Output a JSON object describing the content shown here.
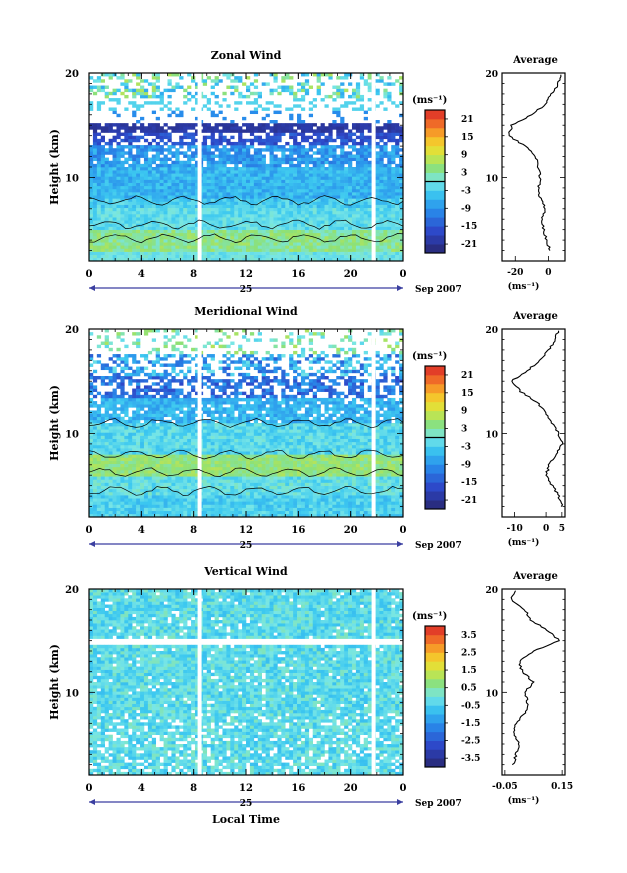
{
  "ylabel": "Height (km)",
  "xlabel": "Local Time",
  "date_label": "Sep 2007",
  "day_label": "25",
  "unit_label": "(ms⁻¹)",
  "avg_title": "Average",
  "y_ticks": [
    "20",
    "10"
  ],
  "x_ticks": [
    "0",
    "4",
    "8",
    "12",
    "16",
    "20",
    "0"
  ],
  "chart_data": [
    {
      "type": "heatmap",
      "title": "Zonal Wind",
      "x_range": [
        0,
        24
      ],
      "y_range": [
        2,
        20
      ],
      "colorbar_ticks": [
        "21",
        "15",
        "9",
        "3",
        "-3",
        "-9",
        "-15",
        "-21"
      ],
      "colorbar_range": [
        -24,
        24
      ],
      "profile": {
        "title": "Average",
        "xticks": [
          "-20",
          "0"
        ],
        "xlim": [
          -28,
          10
        ],
        "xlabel": "(ms⁻¹)",
        "y": [
          3,
          4,
          5,
          6,
          7,
          8,
          9,
          10,
          11,
          12,
          13,
          14,
          15,
          16,
          17,
          18,
          19,
          20
        ],
        "x": [
          1,
          -1,
          -3,
          -4,
          -2,
          -5,
          -6,
          -5,
          -6,
          -8,
          -14,
          -24,
          -22,
          -10,
          -2,
          2,
          6,
          8
        ]
      }
    },
    {
      "type": "heatmap",
      "title": "Meridional Wind",
      "x_range": [
        0,
        24
      ],
      "y_range": [
        2,
        20
      ],
      "colorbar_ticks": [
        "21",
        "15",
        "9",
        "3",
        "-3",
        "-9",
        "-15",
        "-21"
      ],
      "colorbar_range": [
        -24,
        24
      ],
      "profile": {
        "title": "Average",
        "xticks": [
          "-10",
          "0",
          "5"
        ],
        "xlim": [
          -14,
          6
        ],
        "xlabel": "(ms⁻¹)",
        "y": [
          3,
          4,
          5,
          6,
          7,
          8,
          9,
          10,
          11,
          12,
          13,
          14,
          15,
          16,
          17,
          18,
          19,
          20
        ],
        "x": [
          5,
          4,
          2,
          0,
          1,
          3,
          5,
          4,
          2,
          0,
          -3,
          -8,
          -11,
          -6,
          -2,
          1,
          3,
          4
        ]
      }
    },
    {
      "type": "heatmap",
      "title": "Vertical Wind",
      "x_range": [
        0,
        24
      ],
      "y_range": [
        2,
        20
      ],
      "colorbar_ticks": [
        "3.5",
        "2.5",
        "1.5",
        "0.5",
        "-0.5",
        "-1.5",
        "-2.5",
        "-3.5"
      ],
      "colorbar_range": [
        -4,
        4
      ],
      "profile": {
        "title": "Average",
        "xticks": [
          "-0.05",
          "0.15"
        ],
        "xlim": [
          -0.06,
          0.16
        ],
        "xlabel": "(ms⁻¹)",
        "y": [
          3,
          4,
          5,
          6,
          7,
          8,
          9,
          10,
          11,
          12,
          13,
          14,
          15,
          16,
          17,
          18,
          19,
          20
        ],
        "x": [
          -0.02,
          -0.01,
          0.0,
          -0.02,
          -0.01,
          0.02,
          0.03,
          0.02,
          0.05,
          0.01,
          0.0,
          0.05,
          0.14,
          0.1,
          0.04,
          0.02,
          -0.03,
          -0.01
        ]
      }
    }
  ]
}
